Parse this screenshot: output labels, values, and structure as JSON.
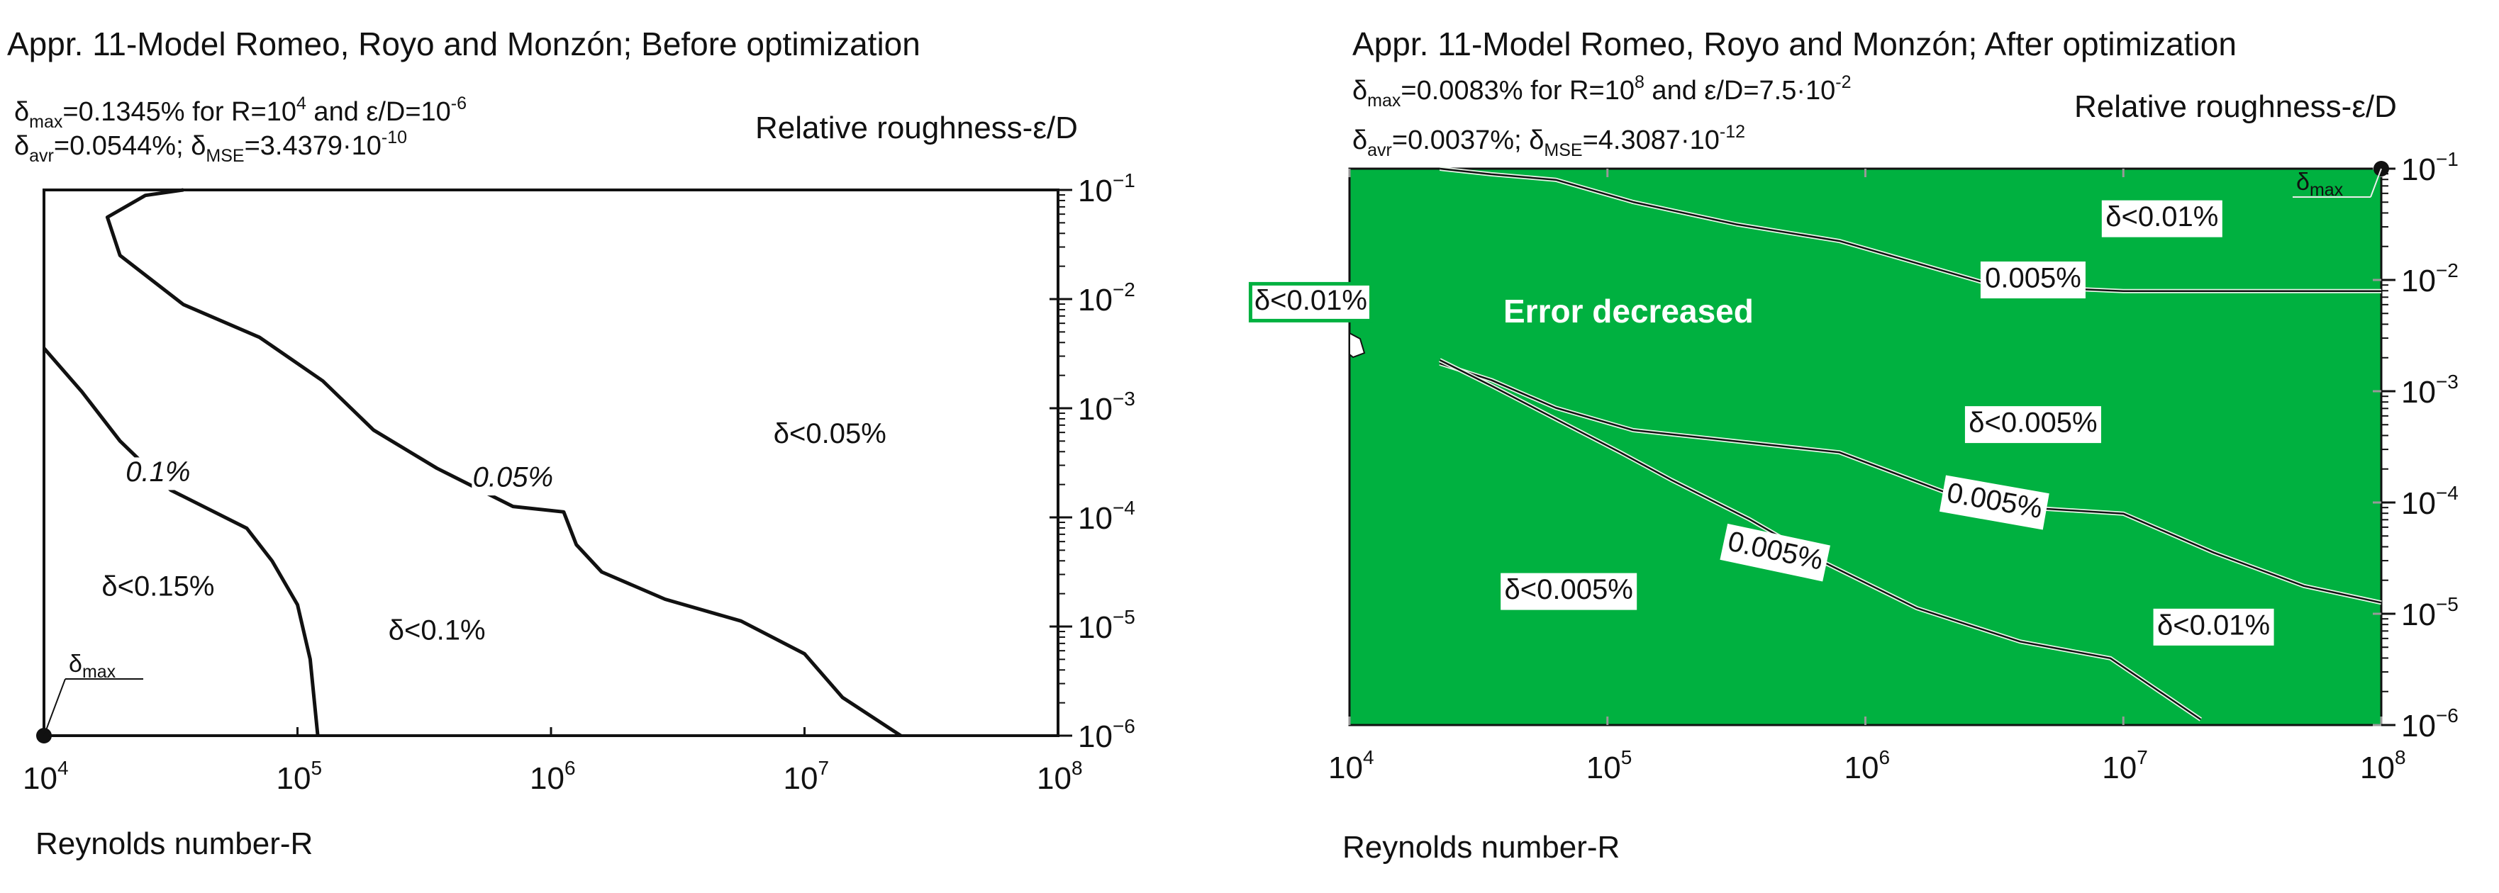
{
  "chart_data": [
    {
      "type": "contour",
      "title": "Appr. 11-Model Romeo, Royo and Monzón; Before optimization",
      "stats": {
        "max": {
          "sym": "δ",
          "sub": "max",
          "pre": "=0.1345% for R=10",
          "sup1": "4",
          "mid": " and ε/D=10",
          "sup2": "-6"
        },
        "avr": {
          "sym": "δ",
          "sub": "avr",
          "val": "=0.0544%; "
        },
        "mse": {
          "sym": "δ",
          "sub": "MSE",
          "val": "=3.4379·10",
          "sup": "-10"
        }
      },
      "xlabel": "Reynolds number-R",
      "ylabel": "Relative roughness-ε/D",
      "x_scale": "log10",
      "xlim_log": [
        4,
        8
      ],
      "y_scale": "log10",
      "ylim_log": [
        -6,
        -1
      ],
      "x_ticks": [
        {
          "base": "10",
          "exp": "4"
        },
        {
          "base": "10",
          "exp": "5"
        },
        {
          "base": "10",
          "exp": "6"
        },
        {
          "base": "10",
          "exp": "7"
        },
        {
          "base": "10",
          "exp": "8"
        }
      ],
      "y_ticks": [
        {
          "base": "10",
          "exp": "−1"
        },
        {
          "base": "10",
          "exp": "−2"
        },
        {
          "base": "10",
          "exp": "−3"
        },
        {
          "base": "10",
          "exp": "−4"
        },
        {
          "base": "10",
          "exp": "−5"
        },
        {
          "base": "10",
          "exp": "−6"
        }
      ],
      "background": "#ffffff",
      "contours": [
        {
          "name": "0.1%",
          "points": [
            [
              4.0,
              -2.45
            ],
            [
              4.15,
              -2.85
            ],
            [
              4.3,
              -3.3
            ],
            [
              4.5,
              -3.75
            ],
            [
              4.8,
              -4.1
            ],
            [
              4.9,
              -4.4
            ],
            [
              5.0,
              -4.8
            ],
            [
              5.05,
              -5.3
            ],
            [
              5.08,
              -6.0
            ]
          ]
        },
        {
          "name": "0.05%",
          "points": [
            [
              4.55,
              -1.0
            ],
            [
              4.4,
              -1.05
            ],
            [
              4.25,
              -1.25
            ],
            [
              4.3,
              -1.6
            ],
            [
              4.55,
              -2.05
            ],
            [
              4.85,
              -2.35
            ],
            [
              5.1,
              -2.75
            ],
            [
              5.3,
              -3.2
            ],
            [
              5.55,
              -3.55
            ],
            [
              5.85,
              -3.9
            ],
            [
              6.05,
              -3.95
            ],
            [
              6.1,
              -4.25
            ],
            [
              6.2,
              -4.5
            ],
            [
              6.45,
              -4.75
            ],
            [
              6.75,
              -4.95
            ],
            [
              7.0,
              -5.25
            ],
            [
              7.15,
              -5.65
            ],
            [
              7.38,
              -6.0
            ]
          ]
        }
      ],
      "labels": [
        {
          "text": "0.1%",
          "x": 4.45,
          "y": -3.6
        },
        {
          "text": "0.05%",
          "x": 5.85,
          "y": -3.65
        },
        {
          "text": "δ<0.05%",
          "x": 7.1,
          "y": -3.25
        },
        {
          "text": "δ<0.15%",
          "x": 4.45,
          "y": -4.65
        },
        {
          "text": "δ<0.1%",
          "x": 5.55,
          "y": -5.05
        }
      ],
      "max_marker": {
        "x": 4,
        "y": -6,
        "label_sym": "δ",
        "label_sub": "max"
      }
    },
    {
      "type": "contour",
      "title": "Appr. 11-Model Romeo, Royo and Monzón; After optimization",
      "stats": {
        "max": {
          "sym": "δ",
          "sub": "max",
          "pre": "=0.0083% for R=10",
          "sup1": "8",
          "mid": " and ε/D=7.5·10",
          "sup2": "-2"
        },
        "avr": {
          "sym": "δ",
          "sub": "avr",
          "val": "=0.0037%; "
        },
        "mse": {
          "sym": "δ",
          "sub": "MSE",
          "val": "=4.3087·10",
          "sup": "-12"
        }
      },
      "xlabel": "Reynolds number-R",
      "ylabel": "Relative roughness-ε/D",
      "x_scale": "log10",
      "xlim_log": [
        4,
        8
      ],
      "y_scale": "log10",
      "ylim_log": [
        -6,
        -1
      ],
      "x_ticks": [
        {
          "base": "10",
          "exp": "4"
        },
        {
          "base": "10",
          "exp": "5"
        },
        {
          "base": "10",
          "exp": "6"
        },
        {
          "base": "10",
          "exp": "7"
        },
        {
          "base": "10",
          "exp": "8"
        }
      ],
      "y_ticks": [
        {
          "base": "10",
          "exp": "−1"
        },
        {
          "base": "10",
          "exp": "−2"
        },
        {
          "base": "10",
          "exp": "−3"
        },
        {
          "base": "10",
          "exp": "−4"
        },
        {
          "base": "10",
          "exp": "−5"
        },
        {
          "base": "10",
          "exp": "−6"
        }
      ],
      "background": "#00b140",
      "contours": [
        {
          "name": "0.01%",
          "points": [
            [
              4.35,
              -1.0
            ],
            [
              4.55,
              -1.05
            ],
            [
              4.8,
              -1.1
            ],
            [
              5.1,
              -1.3
            ],
            [
              5.5,
              -1.5
            ],
            [
              5.9,
              -1.65
            ],
            [
              6.2,
              -1.85
            ],
            [
              6.5,
              -2.05
            ],
            [
              7.0,
              -2.1
            ],
            [
              7.5,
              -2.1
            ],
            [
              8.0,
              -2.1
            ]
          ]
        },
        {
          "name": "0.005% upper",
          "points": [
            [
              4.35,
              -2.75
            ],
            [
              4.55,
              -2.9
            ],
            [
              4.8,
              -3.15
            ],
            [
              5.1,
              -3.35
            ],
            [
              5.5,
              -3.45
            ],
            [
              5.9,
              -3.55
            ],
            [
              6.3,
              -3.9
            ],
            [
              6.65,
              -4.05
            ],
            [
              7.0,
              -4.1
            ],
            [
              7.35,
              -4.45
            ],
            [
              7.7,
              -4.75
            ],
            [
              8.0,
              -4.9
            ]
          ]
        },
        {
          "name": "0.005% lower",
          "points": [
            [
              4.35,
              -2.72
            ],
            [
              4.55,
              -2.95
            ],
            [
              4.8,
              -3.25
            ],
            [
              5.05,
              -3.55
            ],
            [
              5.25,
              -3.8
            ],
            [
              5.55,
              -4.15
            ],
            [
              5.85,
              -4.55
            ],
            [
              6.2,
              -4.95
            ],
            [
              6.6,
              -5.25
            ],
            [
              6.95,
              -5.4
            ],
            [
              7.3,
              -5.95
            ]
          ]
        }
      ],
      "labels": [
        {
          "text": "δ<0.01%",
          "x": 7.15,
          "y": -1.45,
          "boxed": true
        },
        {
          "text": "0.005%",
          "x": 6.65,
          "y": -2.0,
          "boxed": true
        },
        {
          "text": "δ<0.005%",
          "x": 6.65,
          "y": -3.3,
          "boxed": true
        },
        {
          "text": "0.005%",
          "x": 6.5,
          "y": -4.0,
          "boxed": true,
          "rotate": 10
        },
        {
          "text": "0.005%",
          "x": 5.65,
          "y": -4.45,
          "boxed": true,
          "rotate": 12
        },
        {
          "text": "δ<0.005%",
          "x": 4.85,
          "y": -4.8,
          "boxed": true
        },
        {
          "text": "δ<0.01%",
          "x": 7.35,
          "y": -5.12,
          "boxed": true
        },
        {
          "text": "δ<0.01%",
          "x": 3.85,
          "y": -2.2,
          "boxed": true,
          "outside": true
        }
      ],
      "annotation": "Error decreased",
      "max_marker": {
        "x": 8,
        "y": -1,
        "label_sym": "δ",
        "label_sub": "max"
      }
    }
  ]
}
